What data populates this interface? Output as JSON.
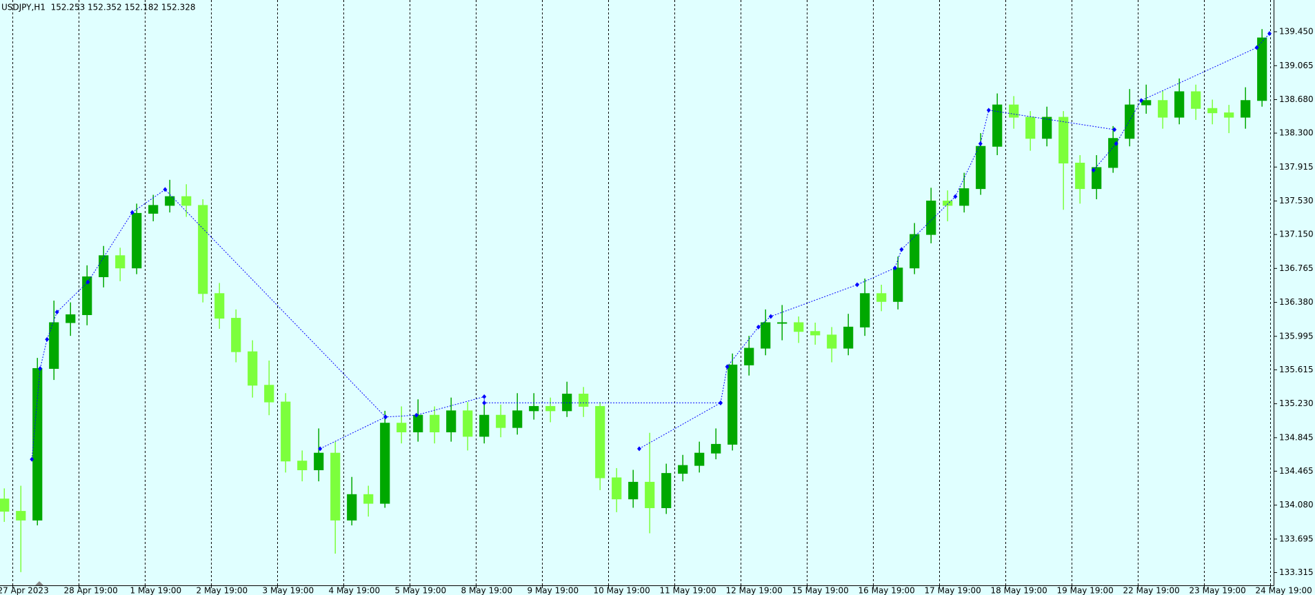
{
  "chart_data": {
    "type": "candlestick",
    "title": "USDJPY,H1  152.253 152.352 152.182 152.328",
    "x": [
      -3,
      3,
      9,
      15,
      21,
      27,
      33,
      39,
      45,
      51,
      57,
      63,
      69,
      75,
      81,
      87,
      93,
      99,
      105,
      111,
      117,
      123,
      129,
      135,
      141,
      147,
      153,
      159,
      165,
      171,
      177,
      183,
      189,
      195,
      201,
      207,
      213,
      219,
      225,
      231,
      237,
      243,
      249,
      255,
      261,
      267,
      273,
      279,
      285,
      291,
      297,
      303,
      309,
      315,
      321,
      327,
      333,
      339,
      345,
      351,
      357,
      363,
      369,
      375,
      381,
      387,
      393,
      399,
      405,
      411,
      417,
      423,
      429,
      435,
      441,
      447,
      453
    ],
    "open": [
      134.15,
      134.01,
      133.91,
      135.63,
      136.15,
      136.24,
      136.67,
      136.91,
      136.77,
      137.39,
      137.48,
      137.58,
      137.48,
      136.48,
      136.2,
      135.82,
      135.44,
      135.25,
      134.58,
      134.48,
      134.67,
      133.91,
      134.2,
      134.1,
      135.01,
      134.91,
      135.1,
      134.91,
      135.15,
      134.86,
      135.1,
      134.96,
      135.15,
      135.2,
      135.15,
      135.34,
      135.2,
      134.39,
      134.15,
      134.34,
      134.05,
      134.44,
      134.53,
      134.67,
      134.77,
      135.67,
      135.86,
      136.15,
      136.15,
      136.05,
      136.01,
      135.86,
      136.1,
      136.48,
      136.39,
      136.77,
      137.15,
      137.53,
      137.48,
      137.67,
      138.15,
      138.62,
      138.48,
      138.24,
      138.48,
      137.96,
      137.67,
      137.91,
      138.24,
      138.62,
      138.67,
      138.48,
      138.77,
      138.58,
      138.53,
      138.48,
      138.67
    ],
    "high": [
      134.27,
      134.3,
      135.75,
      136.4,
      136.38,
      136.8,
      137.02,
      137.0,
      137.5,
      137.6,
      137.77,
      137.72,
      137.55,
      136.6,
      136.3,
      135.95,
      135.72,
      135.35,
      134.7,
      134.95,
      134.8,
      134.4,
      134.3,
      135.15,
      135.2,
      135.28,
      135.2,
      135.3,
      135.25,
      135.25,
      135.22,
      135.35,
      135.35,
      135.3,
      135.48,
      135.42,
      135.25,
      134.5,
      134.48,
      134.9,
      134.55,
      134.65,
      134.8,
      134.95,
      135.8,
      136.0,
      136.3,
      136.35,
      136.22,
      136.15,
      136.1,
      136.25,
      136.65,
      136.58,
      136.9,
      137.28,
      137.68,
      137.65,
      137.85,
      138.3,
      138.75,
      138.72,
      138.55,
      138.6,
      138.55,
      138.05,
      138.05,
      138.38,
      138.8,
      138.85,
      138.78,
      138.92,
      138.85,
      138.68,
      138.62,
      138.82,
      139.48
    ],
    "low": [
      133.89,
      133.32,
      133.85,
      135.5,
      136.0,
      136.12,
      136.55,
      136.62,
      136.7,
      137.3,
      137.4,
      137.35,
      136.38,
      136.08,
      135.7,
      135.3,
      135.1,
      134.45,
      134.35,
      134.35,
      133.53,
      133.85,
      133.95,
      134.05,
      134.78,
      134.8,
      134.78,
      134.8,
      134.7,
      134.78,
      134.85,
      134.88,
      135.05,
      135.02,
      135.08,
      135.08,
      134.25,
      134.0,
      134.05,
      133.76,
      133.98,
      134.35,
      134.45,
      134.6,
      134.7,
      135.55,
      135.78,
      135.95,
      135.92,
      135.9,
      135.7,
      135.78,
      136.0,
      136.28,
      136.3,
      136.7,
      137.05,
      137.3,
      137.4,
      137.6,
      138.05,
      138.35,
      138.1,
      138.15,
      137.43,
      137.5,
      137.55,
      137.85,
      138.15,
      138.52,
      138.35,
      138.4,
      138.45,
      138.4,
      138.3,
      138.35,
      138.6
    ],
    "close": [
      134.01,
      133.91,
      135.63,
      136.15,
      136.24,
      136.67,
      136.91,
      136.77,
      137.39,
      137.48,
      137.58,
      137.48,
      136.48,
      136.2,
      135.82,
      135.44,
      135.25,
      134.58,
      134.48,
      134.67,
      133.91,
      134.2,
      134.1,
      135.01,
      134.91,
      135.1,
      134.91,
      135.15,
      134.86,
      135.1,
      134.96,
      135.15,
      135.2,
      135.15,
      135.34,
      135.2,
      134.39,
      134.15,
      134.34,
      134.05,
      134.44,
      134.53,
      134.67,
      134.77,
      135.67,
      135.86,
      136.15,
      136.15,
      136.05,
      136.01,
      135.86,
      136.1,
      136.48,
      136.39,
      136.77,
      137.15,
      137.53,
      137.48,
      137.67,
      138.15,
      138.62,
      138.48,
      138.24,
      138.48,
      137.96,
      137.67,
      137.91,
      138.24,
      138.62,
      138.67,
      138.48,
      138.77,
      138.58,
      138.53,
      138.48,
      138.67,
      139.38
    ],
    "up_color": "#00a800",
    "down_color": "#7cff3c",
    "overlay": {
      "color": "#0000ff",
      "x": [
        7.0,
        10.0,
        12.5,
        16.1,
        27.3,
        43.4,
        55.3,
        135.2,
        null,
        111.5,
        135.2,
        146.4,
        171.0,
        171.0,
        256.7,
        null,
        227.2,
        256.7,
        259.1,
        270.4,
        274.9,
        306.2,
        319.9,
        322.3,
        341.8,
        350.9,
        353.9,
        399.5,
        null,
        391.9,
        400.1,
        409.2,
        451.1,
        455.7
      ],
      "values": [
        134.6,
        135.63,
        135.96,
        136.27,
        136.61,
        137.4,
        137.66,
        135.08,
        null,
        134.72,
        135.08,
        135.1,
        135.31,
        135.24,
        135.24,
        null,
        134.72,
        135.24,
        135.65,
        136.1,
        136.22,
        136.58,
        136.77,
        136.98,
        137.58,
        138.18,
        138.56,
        138.34,
        null,
        137.88,
        138.18,
        138.67,
        139.27,
        139.43
      ]
    },
    "xlim": [
      -4.56,
      457.2
    ],
    "xticks": [
      {
        "value": 0,
        "label": "27 Apr 2023"
      },
      {
        "value": 24,
        "label": "28 Apr 19:00"
      },
      {
        "value": 48,
        "label": "1 May 19:00"
      },
      {
        "value": 72,
        "label": "2 May 19:00"
      },
      {
        "value": 96,
        "label": "3 May 19:00"
      },
      {
        "value": 120,
        "label": "4 May 19:00"
      },
      {
        "value": 144,
        "label": "5 May 19:00"
      },
      {
        "value": 168,
        "label": "8 May 19:00"
      },
      {
        "value": 192,
        "label": "9 May 19:00"
      },
      {
        "value": 216,
        "label": "10 May 19:00"
      },
      {
        "value": 240,
        "label": "11 May 19:00"
      },
      {
        "value": 264,
        "label": "12 May 19:00"
      },
      {
        "value": 288,
        "label": "15 May 19:00"
      },
      {
        "value": 312,
        "label": "16 May 19:00"
      },
      {
        "value": 336,
        "label": "17 May 19:00"
      },
      {
        "value": 360,
        "label": "18 May 19:00"
      },
      {
        "value": 384,
        "label": "19 May 19:00"
      },
      {
        "value": 408,
        "label": "22 May 19:00"
      },
      {
        "value": 432,
        "label": "23 May 19:00"
      },
      {
        "value": 456,
        "label": "24 May 19:00"
      }
    ],
    "ylim": [
      133.17,
      139.81
    ],
    "yticks": [
      {
        "value": 139.45,
        "label": "139.450"
      },
      139.065,
      {
        "value": 138.68,
        "label": "138.680"
      },
      {
        "value": 138.3,
        "label": "138.300"
      },
      137.915,
      {
        "value": 137.53,
        "label": "137.530"
      },
      {
        "value": 137.15,
        "label": "137.150"
      },
      136.765,
      {
        "value": 136.38,
        "label": "136.380"
      },
      135.995,
      135.615,
      {
        "value": 135.23,
        "label": "135.230"
      },
      134.845,
      134.465,
      {
        "value": 134.08,
        "label": "134.080"
      },
      133.695,
      133.315
    ],
    "grid": true
  }
}
